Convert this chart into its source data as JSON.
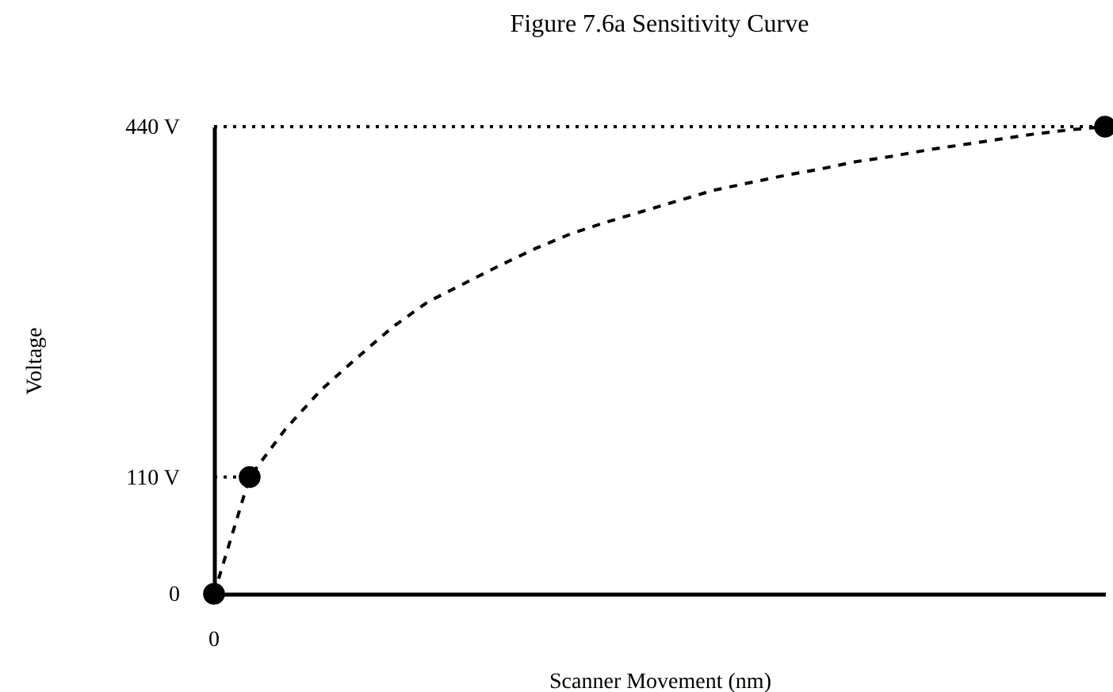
{
  "chart_data": {
    "type": "line",
    "title": "Figure 7.6a   Sensitivity Curve",
    "xlabel": "Scanner Movement (nm)",
    "ylabel": "Voltage",
    "annotations": [
      "0"
    ],
    "categories": [
      null,
      null,
      null,
      null,
      null,
      null,
      null,
      null,
      null,
      null,
      null,
      null,
      null,
      null,
      null,
      null,
      null,
      null,
      null,
      null,
      null,
      null,
      null,
      null,
      null,
      null
    ],
    "ylim": [
      0,
      440
    ],
    "yticks": [
      0,
      {
        "value": 110,
        "label": "110 V"
      },
      {
        "value": 440,
        "label": "440 V"
      }
    ],
    "grid": false,
    "series": [
      {
        "color": "#000000",
        "line_style": "dashed",
        "marker": "none",
        "values": [
          0,
          110,
          155,
          192,
          222,
          251,
          275,
          292,
          309,
          325,
          339,
          350,
          360,
          370,
          380,
          387,
          394,
          400,
          407,
          412,
          418,
          423,
          428,
          433,
          437,
          440
        ]
      },
      {
        "type": "scatter",
        "color": "#000000",
        "marker": "circle",
        "values": [
          0,
          110,
          null,
          null,
          null,
          null,
          null,
          null,
          null,
          null,
          null,
          null,
          null,
          null,
          null,
          null,
          null,
          null,
          null,
          null,
          null,
          null,
          null,
          null,
          null,
          440
        ]
      }
    ],
    "ref_lines": [
      {
        "axis": "y",
        "value": 440,
        "line_style": "dotted"
      }
    ]
  }
}
